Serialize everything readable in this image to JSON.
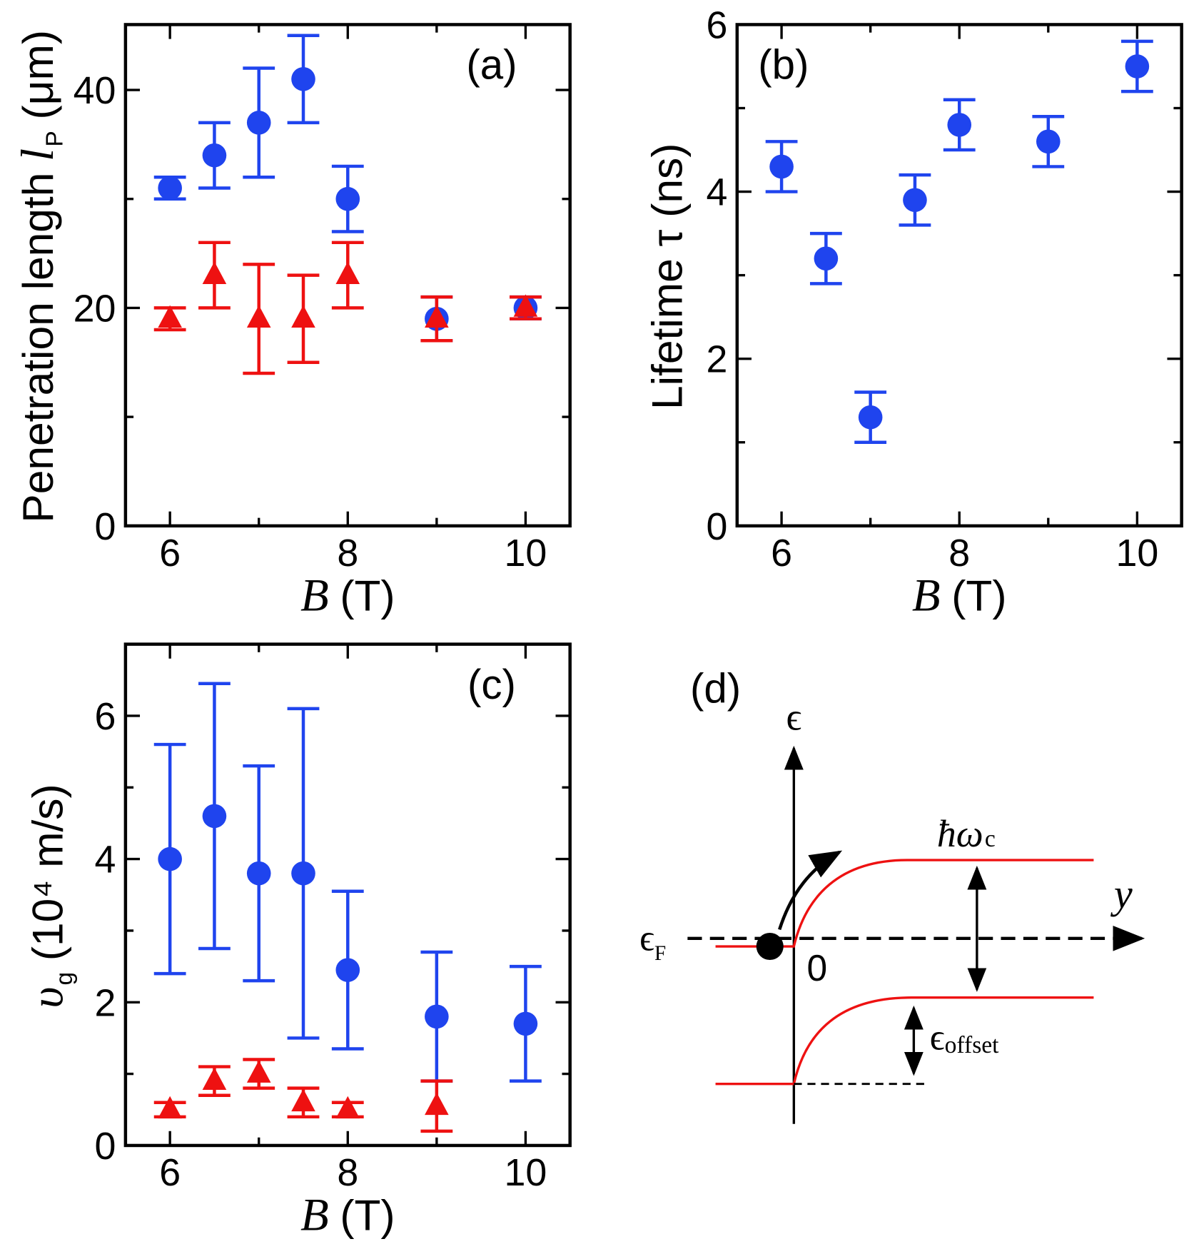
{
  "chart_data": [
    {
      "type": "scatter",
      "panel": "(a)",
      "xlabel": {
        "symbol": "B",
        "unit": "(T)"
      },
      "ylabel": {
        "text": "Penetration length",
        "symbol": "l",
        "subscript": "P",
        "unit": "(μm)"
      },
      "xlim": [
        5.5,
        10.5
      ],
      "ylim": [
        0,
        46
      ],
      "xticks": [
        6,
        8,
        10
      ],
      "xminor": [
        7,
        9
      ],
      "yticks": [
        0,
        20,
        40
      ],
      "yminor": [
        10,
        30
      ],
      "series": [
        {
          "color": "#1f44ee",
          "marker": "circle",
          "x": [
            6,
            6.5,
            7,
            7.5,
            8,
            9,
            10
          ],
          "values": [
            31,
            34,
            37,
            41,
            30,
            19,
            20
          ],
          "errors": [
            1,
            3,
            5,
            4,
            3,
            2,
            1
          ]
        },
        {
          "color": "#ee1111",
          "marker": "triangle",
          "x": [
            6,
            6.5,
            7,
            7.5,
            8,
            9,
            10
          ],
          "values": [
            19,
            23,
            19,
            19,
            23,
            19,
            20
          ],
          "errors": [
            1,
            3,
            5,
            4,
            3,
            2,
            1
          ]
        }
      ]
    },
    {
      "type": "scatter",
      "panel": "(b)",
      "xlabel": {
        "symbol": "B",
        "unit": "(T)"
      },
      "ylabel": {
        "text": "Lifetime τ (ns)"
      },
      "xlim": [
        5.5,
        10.5
      ],
      "ylim": [
        0,
        6
      ],
      "xticks": [
        6,
        8,
        10
      ],
      "xminor": [
        7,
        9
      ],
      "yticks": [
        0,
        2,
        4,
        6
      ],
      "yminor": [
        1,
        3,
        5
      ],
      "series": [
        {
          "color": "#1f44ee",
          "marker": "circle",
          "x": [
            6,
            6.5,
            7,
            7.5,
            8,
            9,
            10
          ],
          "values": [
            4.3,
            3.2,
            1.3,
            3.9,
            4.8,
            4.6,
            5.5
          ],
          "errors": [
            0.3,
            0.3,
            0.3,
            0.3,
            0.3,
            0.3,
            0.3
          ]
        }
      ]
    },
    {
      "type": "scatter",
      "panel": "(c)",
      "xlabel": {
        "symbol": "B",
        "unit": "(T)"
      },
      "ylabel": {
        "symbol": "υ",
        "subscript": "g",
        "unit": "(10⁴ m/s)"
      },
      "xlim": [
        5.5,
        10.5
      ],
      "ylim": [
        0,
        7
      ],
      "xticks": [
        6,
        8,
        10
      ],
      "xminor": [
        7,
        9
      ],
      "yticks": [
        0,
        2,
        4,
        6
      ],
      "yminor": [
        1,
        3,
        5
      ],
      "series": [
        {
          "color": "#1f44ee",
          "marker": "circle",
          "x": [
            6,
            6.5,
            7,
            7.5,
            8,
            9,
            10
          ],
          "values": [
            4.0,
            4.6,
            3.8,
            3.8,
            2.45,
            1.8,
            1.7
          ],
          "errors": [
            1.6,
            1.85,
            1.5,
            2.3,
            1.1,
            0.9,
            0.8
          ]
        },
        {
          "color": "#ee1111",
          "marker": "triangle",
          "x": [
            6,
            6.5,
            7,
            7.5,
            8,
            9
          ],
          "values": [
            0.5,
            0.9,
            1.0,
            0.6,
            0.5,
            0.55
          ],
          "errors": [
            0.1,
            0.2,
            0.2,
            0.2,
            0.1,
            0.35
          ]
        }
      ]
    }
  ],
  "diagram": {
    "label": "(d)",
    "energy_axis": "ϵ",
    "position_axis": "y",
    "fermi": {
      "symbol": "ϵ",
      "subscript": "F"
    },
    "origin": "0",
    "cyclotron": {
      "symbol": "ħω",
      "subscript": "c"
    },
    "offset": {
      "symbol": "ϵ",
      "subscript": "offset"
    }
  }
}
